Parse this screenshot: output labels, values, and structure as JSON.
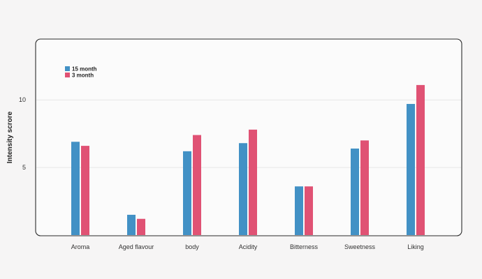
{
  "chart_data": {
    "type": "bar",
    "title": "",
    "xlabel": "",
    "ylabel": "Intensity scrore",
    "ylim": [
      0,
      14.5
    ],
    "yticks": [
      5,
      10
    ],
    "grid": true,
    "legend_position": "top-left",
    "categories": [
      "Aroma",
      "Aged flavour",
      "body",
      "Acidity",
      "Bitterness",
      "Sweetness",
      "Liking"
    ],
    "series": [
      {
        "name": "15 month",
        "color": "#4291c5",
        "values": [
          6.9,
          1.5,
          6.2,
          6.8,
          3.6,
          6.4,
          9.7
        ]
      },
      {
        "name": "3 month",
        "color": "#e05274",
        "values": [
          6.6,
          1.2,
          7.4,
          7.8,
          3.6,
          7.0,
          11.1
        ]
      }
    ]
  }
}
